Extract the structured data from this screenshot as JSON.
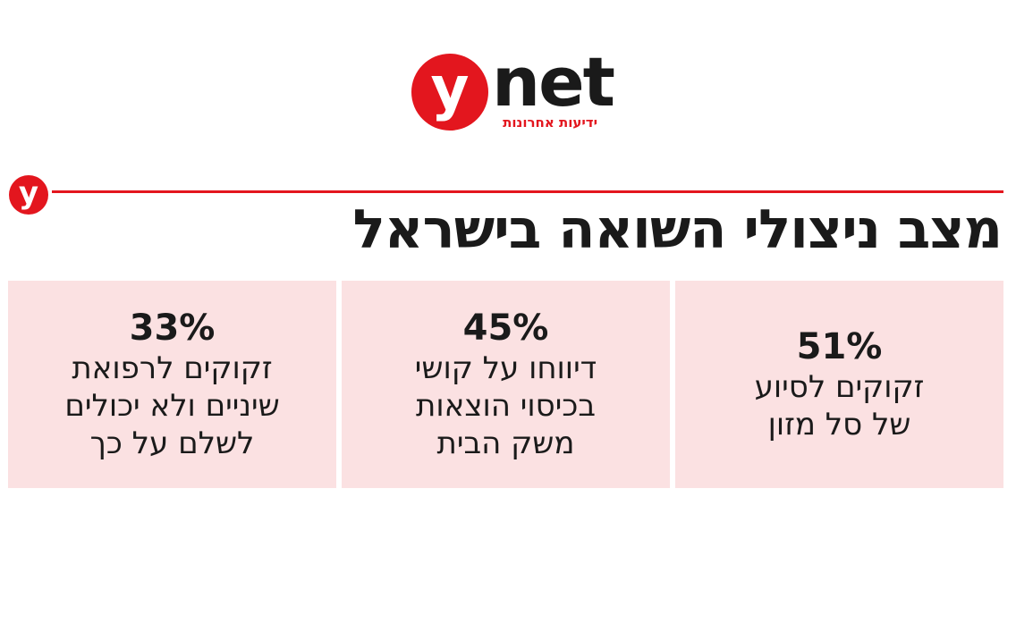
{
  "logo": {
    "badge": "y",
    "word": "net",
    "tagline": "ידיעות אחרונות"
  },
  "header": {
    "badge": "y",
    "title": "מצב ניצולי השואה בישראל"
  },
  "chart_data": {
    "type": "table",
    "title": "מצב ניצולי השואה בישראל",
    "items": [
      {
        "value_label": "51%",
        "value": 51,
        "label": "זקוקים לסיוע\nשל סל מזון"
      },
      {
        "value_label": "45%",
        "value": 45,
        "label": "דיווחו על קושי\nבכיסוי הוצאות\nמשק הבית"
      },
      {
        "value_label": "33%",
        "value": 33,
        "label": "זקוקים לרפואת\nשיניים ולא יכולים\nלשלם על כך"
      }
    ]
  },
  "colors": {
    "brand_red": "#e3161e",
    "box_bg": "#fbe1e2",
    "text": "#1a1a1a"
  }
}
